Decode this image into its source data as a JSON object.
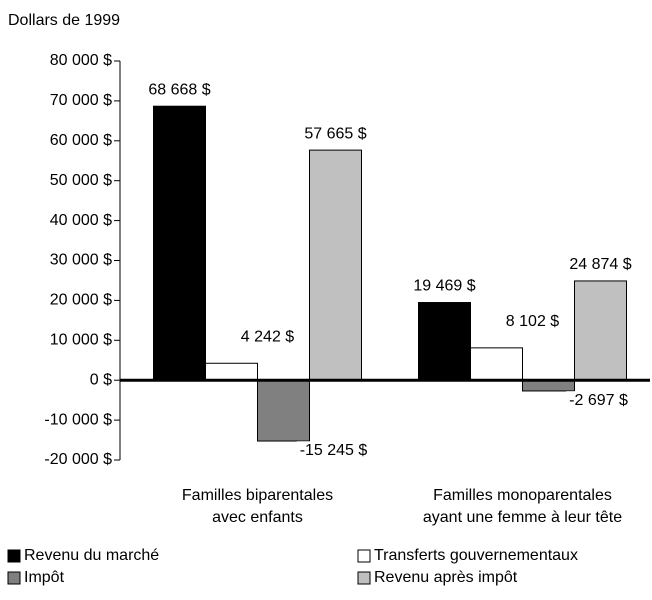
{
  "chart_data": {
    "type": "bar",
    "y_label": "Dollars de 1999",
    "categories": [
      "Familles biparentales\navec enfants",
      "Familles monoparentales\nayant une femme à leur tête"
    ],
    "series": [
      {
        "name": "Revenu du marché",
        "color": "#000000",
        "values": [
          68668,
          19469
        ],
        "value_labels": [
          "68 668 $",
          "19 469 $"
        ]
      },
      {
        "name": "Transferts gouvernementaux",
        "color": "#ffffff",
        "values": [
          4242,
          8102
        ],
        "value_labels": [
          "4 242 $",
          "8 102 $"
        ]
      },
      {
        "name": "Impôt",
        "color": "#808080",
        "values": [
          -15245,
          -2697
        ],
        "value_labels": [
          "-15 245 $",
          "-2 697 $"
        ]
      },
      {
        "name": "Revenu après impôt",
        "color": "#c0c0c0",
        "values": [
          57665,
          24874
        ],
        "value_labels": [
          "57 665 $",
          "24 874 $"
        ]
      }
    ],
    "ylim": [
      -20000,
      80000
    ],
    "yticks": [
      {
        "value": -20000,
        "label": "-20 000 $"
      },
      {
        "value": -10000,
        "label": "-10 000 $"
      },
      {
        "value": 0,
        "label": "0 $"
      },
      {
        "value": 10000,
        "label": "10 000 $"
      },
      {
        "value": 20000,
        "label": "20 000 $"
      },
      {
        "value": 30000,
        "label": "30 000 $"
      },
      {
        "value": 40000,
        "label": "40 000 $"
      },
      {
        "value": 50000,
        "label": "50 000 $"
      },
      {
        "value": 60000,
        "label": "60 000 $"
      },
      {
        "value": 70000,
        "label": "70 000 $"
      },
      {
        "value": 80000,
        "label": "80 000 $"
      }
    ],
    "legend": "bottom"
  }
}
